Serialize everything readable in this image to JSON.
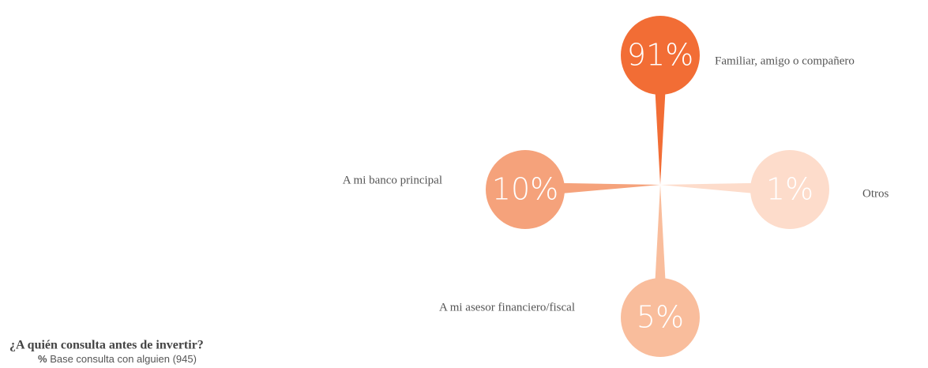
{
  "chart_data": {
    "type": "radial",
    "title": "¿A quién consulta antes de invertir?",
    "subtitle": {
      "unit": "%",
      "text": "Base consulta con alguien (945)"
    },
    "categories": [
      "Familiar, amigo o compañero",
      "A mi banco principal",
      "Otros",
      "A mi asesor financiero/fiscal"
    ],
    "values": [
      91,
      10,
      1,
      5
    ],
    "value_labels": [
      "91%",
      "10%",
      "1%",
      "5%"
    ],
    "colors": [
      "#f26d35",
      "#f5a27b",
      "#fddccb",
      "#f9bd9c"
    ]
  }
}
